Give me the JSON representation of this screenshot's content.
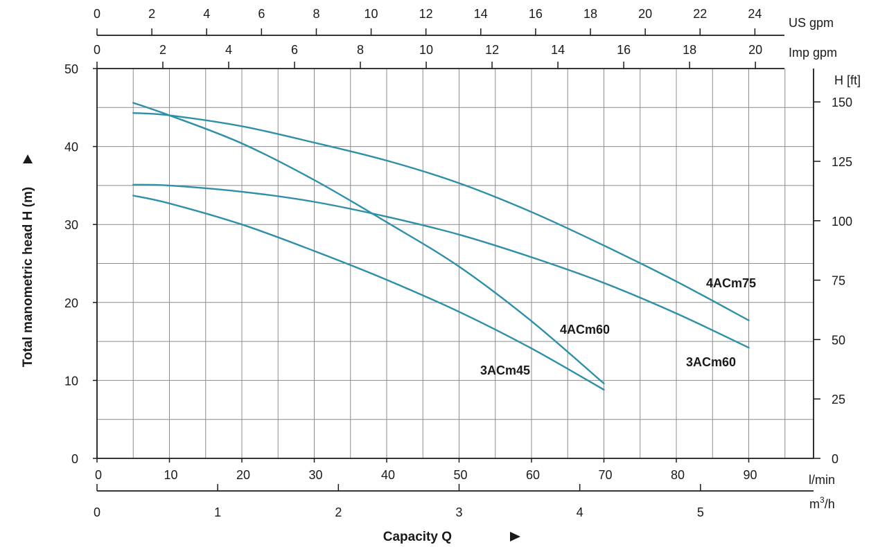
{
  "chart_data": {
    "type": "line",
    "xlabel": "Capacity Q",
    "ylabel": "Total manometric head H (m)",
    "xlim": [
      0,
      99
    ],
    "ylim": [
      0,
      50
    ],
    "x_unit": "l/min",
    "x_ticks": [
      0,
      10,
      20,
      30,
      40,
      50,
      60,
      70,
      80,
      90
    ],
    "y_ticks": [
      0,
      10,
      20,
      30,
      40,
      50
    ],
    "right_axis": {
      "unit": "H [ft]",
      "ticks": [
        0,
        25,
        50,
        75,
        100,
        125,
        150
      ]
    },
    "secondary_x_axes": [
      {
        "unit": "US gpm",
        "ticks": [
          0,
          2,
          4,
          6,
          8,
          10,
          12,
          14,
          16,
          18,
          20,
          22,
          24
        ]
      },
      {
        "unit": "Imp gpm",
        "ticks": [
          0,
          2,
          4,
          6,
          8,
          10,
          12,
          14,
          16,
          18,
          20
        ]
      },
      {
        "unit": "m³/h",
        "ticks": [
          0,
          1,
          2,
          3,
          4,
          5
        ]
      }
    ],
    "grid": true,
    "series_color": "#2e8fa8",
    "series": [
      {
        "name": "4ACm75",
        "x": [
          5,
          10,
          20,
          30,
          40,
          50,
          60,
          70,
          80,
          90
        ],
        "values": [
          44.3,
          44.0,
          42.6,
          40.5,
          38.2,
          35.3,
          31.6,
          27.3,
          22.7,
          17.7
        ]
      },
      {
        "name": "3ACm60",
        "x": [
          5,
          10,
          20,
          30,
          40,
          50,
          60,
          70,
          80,
          90
        ],
        "values": [
          35.1,
          35.0,
          34.2,
          32.9,
          31.0,
          28.7,
          25.8,
          22.5,
          18.6,
          14.2
        ]
      },
      {
        "name": "4ACm60",
        "x": [
          5,
          10,
          20,
          30,
          40,
          50,
          60,
          70
        ],
        "values": [
          45.6,
          44.0,
          40.4,
          35.7,
          30.3,
          24.6,
          17.6,
          9.6
        ]
      },
      {
        "name": "3ACm45",
        "x": [
          5,
          10,
          20,
          30,
          40,
          50,
          60,
          70
        ],
        "values": [
          33.7,
          32.7,
          30.0,
          26.6,
          22.9,
          18.8,
          14.1,
          8.8
        ]
      }
    ]
  }
}
